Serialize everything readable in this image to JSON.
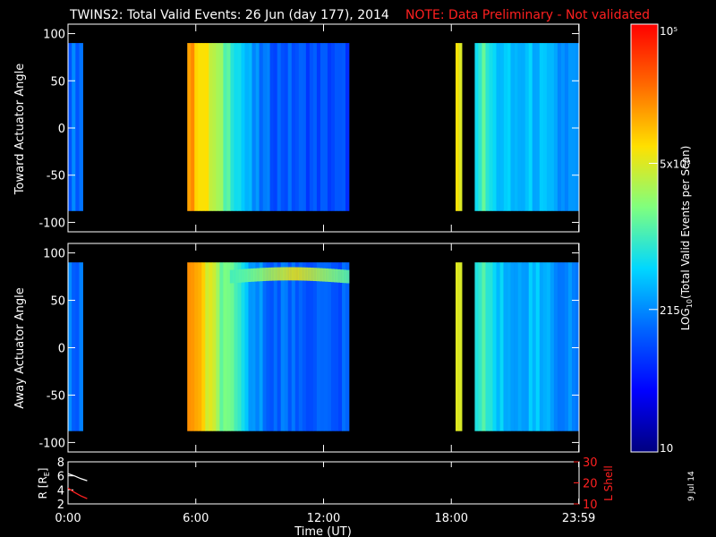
{
  "title": "TWINS2: Total Valid Events: 26 Jun (day 177), 2014",
  "note": "NOTE: Data Preliminary - Not validated",
  "date_stamp": "9 Jul 14",
  "colors": {
    "note": "#ff2020",
    "lshell": "#ff2020",
    "background": "#000000",
    "axes": "#ffffff",
    "colormap": [
      "#00007f",
      "#0000ff",
      "#0064ff",
      "#00d7ff",
      "#7fff7f",
      "#ffe000",
      "#ff6a00",
      "#ff0000"
    ]
  },
  "colorbar": {
    "label": "LOG10(Total Valid Events per Scan)",
    "label_main": "LOG",
    "label_sub": "10",
    "label_rest": "(Total Valid Events per Scan)",
    "scale": "log",
    "range": [
      10,
      100000
    ],
    "ticks": [
      {
        "value": 10,
        "label": "10"
      },
      {
        "value": 215,
        "label": "215"
      },
      {
        "value": 5000,
        "label": "5x10³"
      },
      {
        "value": 100000,
        "label": "10⁵"
      }
    ]
  },
  "xaxis": {
    "label": "Time (UT)",
    "range": [
      0,
      24
    ],
    "ticks": [
      {
        "value": 0,
        "label": "0:00"
      },
      {
        "value": 6,
        "label": "6:00"
      },
      {
        "value": 12,
        "label": "12:00"
      },
      {
        "value": 18,
        "label": "18:00"
      },
      {
        "value": 23.983,
        "label": "23:59"
      }
    ]
  },
  "chart_data": [
    {
      "type": "heatmap",
      "panel": "toward",
      "ylabel": "Toward Actuator Angle",
      "ylim": [
        -110,
        110
      ],
      "yticks": [
        100,
        50,
        0,
        -50,
        -100
      ],
      "angle_range": [
        -88,
        90
      ],
      "blocks": [
        {
          "t0": 0.0,
          "t1": 0.7,
          "level": 0.3
        },
        {
          "t0": 5.6,
          "t1": 13.2,
          "level": 0.3
        },
        {
          "t0": 18.2,
          "t1": 18.5,
          "level": 0.7
        },
        {
          "t0": 19.1,
          "t1": 24.0,
          "level": 0.36
        }
      ],
      "time_profile": [
        [
          5.6,
          0.82
        ],
        [
          5.9,
          0.78
        ],
        [
          6.3,
          0.72
        ],
        [
          6.8,
          0.64
        ],
        [
          7.3,
          0.55
        ],
        [
          7.8,
          0.5
        ],
        [
          8.3,
          0.4
        ],
        [
          8.8,
          0.32
        ],
        [
          9.5,
          0.28
        ],
        [
          11.0,
          0.26
        ],
        [
          13.2,
          0.24
        ],
        [
          19.1,
          0.46
        ],
        [
          19.5,
          0.52
        ],
        [
          20.0,
          0.42
        ],
        [
          21.0,
          0.38
        ],
        [
          22.0,
          0.4
        ],
        [
          23.0,
          0.34
        ],
        [
          24.0,
          0.33
        ]
      ],
      "enhancements": []
    },
    {
      "type": "heatmap",
      "panel": "away",
      "ylabel": "Away Actuator Angle",
      "ylim": [
        -110,
        110
      ],
      "yticks": [
        100,
        50,
        0,
        -50,
        -100
      ],
      "angle_range": [
        -88,
        90
      ],
      "blocks": [
        {
          "t0": 0.0,
          "t1": 0.7,
          "level": 0.3
        },
        {
          "t0": 5.6,
          "t1": 13.2,
          "level": 0.3
        },
        {
          "t0": 18.2,
          "t1": 18.5,
          "level": 0.7
        },
        {
          "t0": 19.1,
          "t1": 24.0,
          "level": 0.36
        }
      ],
      "time_profile": [
        [
          5.6,
          0.82
        ],
        [
          5.9,
          0.78
        ],
        [
          6.3,
          0.72
        ],
        [
          6.8,
          0.64
        ],
        [
          7.3,
          0.55
        ],
        [
          7.8,
          0.5
        ],
        [
          8.3,
          0.42
        ],
        [
          8.8,
          0.34
        ],
        [
          9.5,
          0.3
        ],
        [
          11.0,
          0.28
        ],
        [
          13.2,
          0.26
        ],
        [
          19.1,
          0.46
        ],
        [
          19.5,
          0.52
        ],
        [
          20.0,
          0.42
        ],
        [
          21.0,
          0.38
        ],
        [
          22.0,
          0.4
        ],
        [
          23.0,
          0.34
        ],
        [
          24.0,
          0.33
        ]
      ],
      "enhancements": [
        {
          "t0": 7.6,
          "t1": 13.2,
          "angle_center": 75,
          "angle_width": 14,
          "level": 0.6,
          "decline_to": 80
        }
      ]
    },
    {
      "type": "line",
      "panel": "orbit",
      "ylabel": "R (RE)",
      "ylabel_main": "R [R",
      "ylabel_sub": "E",
      "ylabel_close": "]",
      "ylim": [
        2,
        8
      ],
      "yticks": [
        2,
        4,
        6,
        8
      ],
      "y2label": "L Shell",
      "y2lim": [
        10,
        30
      ],
      "y2ticks": [
        10,
        20,
        30
      ],
      "series": [
        {
          "name": "R",
          "color": "#ffffff",
          "x": [
            0.0,
            0.3,
            0.6,
            0.9
          ],
          "y": [
            6.3,
            6.0,
            5.6,
            5.3
          ]
        },
        {
          "name": "L Shell",
          "color": "#ff2020",
          "x": [
            0.0,
            0.3,
            0.6,
            0.9
          ],
          "y": [
            17.5,
            15.5,
            13.8,
            12.5
          ]
        }
      ]
    }
  ]
}
